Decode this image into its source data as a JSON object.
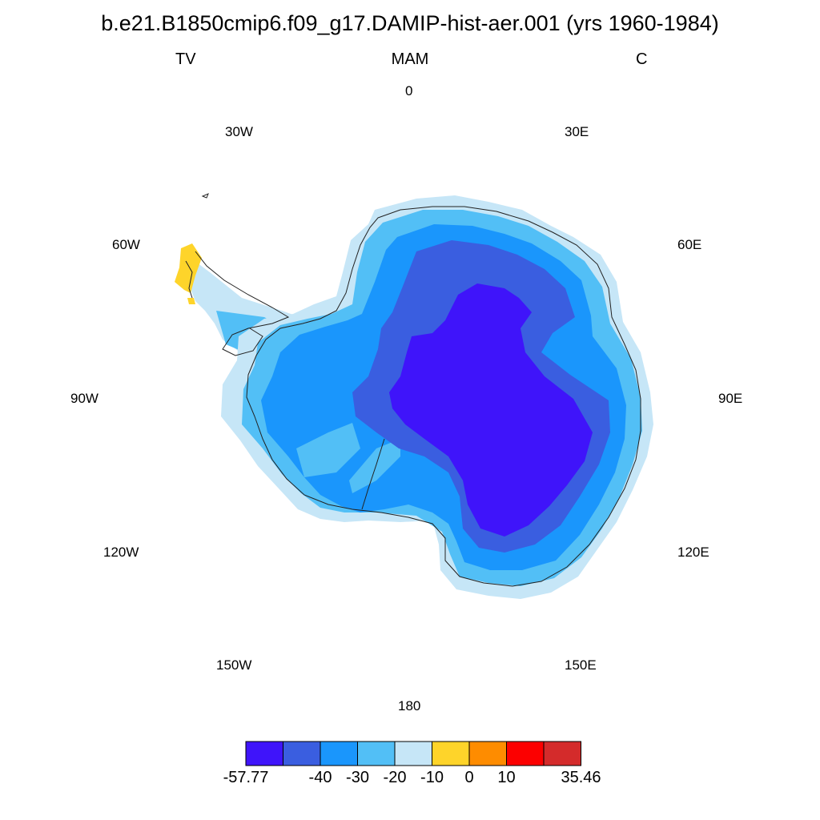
{
  "title": "b.e21.B1850cmip6.f09_g17.DAMIP-hist-aer.001 (yrs 1960-1984)",
  "subtitle": {
    "left": "TV",
    "center": "MAM",
    "right": "C"
  },
  "longitude_labels": {
    "lon_0": "0",
    "lon_30e": "30E",
    "lon_60e": "60E",
    "lon_90e": "90E",
    "lon_120e": "120E",
    "lon_150e": "150E",
    "lon_180": "180",
    "lon_150w": "150W",
    "lon_120w": "120W",
    "lon_90w": "90W",
    "lon_60w": "60W",
    "lon_30w": "30W"
  },
  "colorbar": {
    "colors": [
      "#3f14fa",
      "#3a5ee0",
      "#1a96fc",
      "#52bff6",
      "#c6e6f7",
      "#fed42a",
      "#fe8c00",
      "#fc0000",
      "#d42b2b"
    ],
    "label_texts": [
      "-57.77",
      "-40",
      "-30",
      "-20",
      "-10",
      "0",
      "10",
      "35.46"
    ]
  },
  "field": {
    "variable": "TV",
    "units": "C",
    "season": "MAM",
    "min": -57.77,
    "max": 35.46,
    "levels": [
      -40,
      -30,
      -20,
      -10,
      0,
      10
    ]
  }
}
